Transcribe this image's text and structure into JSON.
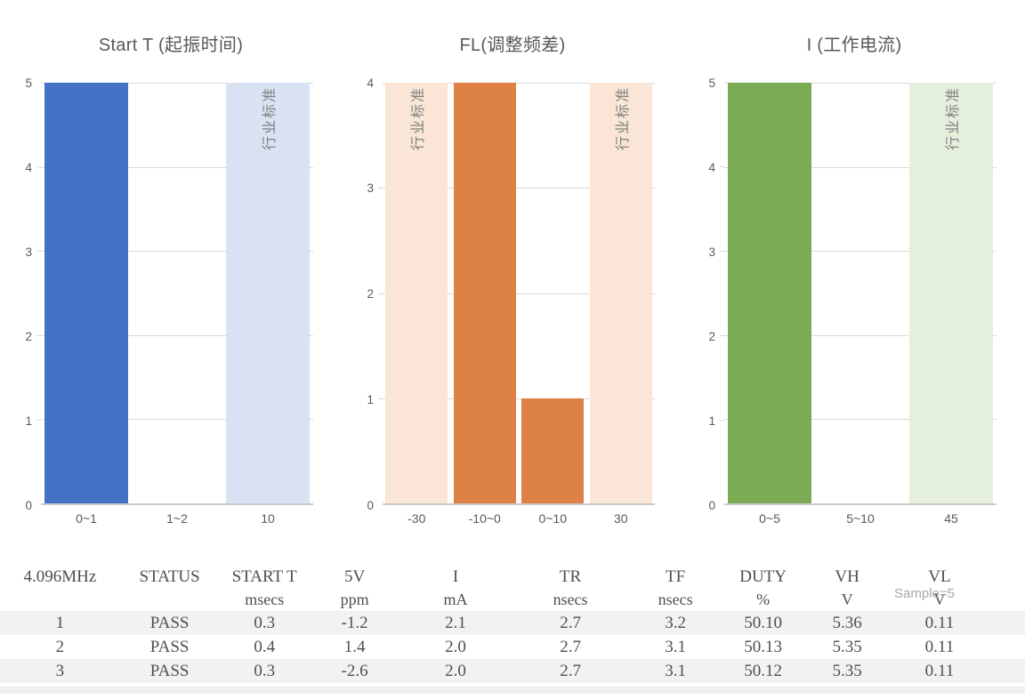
{
  "sample_note": "Sample=5",
  "chart_data": [
    {
      "type": "bar",
      "title": "Start T (起振时间)",
      "ylim": [
        0,
        5
      ],
      "ytick_step": 1,
      "grid": true,
      "legend": "none",
      "categories": [
        "0~1",
        "1~2",
        "10"
      ],
      "values": [
        5,
        0,
        5
      ],
      "series": [
        {
          "category": "0~1",
          "value": 5,
          "kind": "measured"
        },
        {
          "category": "1~2",
          "value": 0,
          "kind": "measured"
        },
        {
          "category": "10",
          "value": 5,
          "kind": "standard",
          "bar_label": "行业标准"
        }
      ],
      "colors": {
        "measured": "#4472C4",
        "standard": "#D9E2F3"
      }
    },
    {
      "type": "bar",
      "title": "FL(调整频差)",
      "ylim": [
        0,
        4
      ],
      "ytick_step": 1,
      "grid": true,
      "legend": "none",
      "categories": [
        "-30",
        "-10~0",
        "0~10",
        "30"
      ],
      "values": [
        4,
        4,
        1,
        4
      ],
      "series": [
        {
          "category": "-30",
          "value": 4,
          "kind": "standard",
          "bar_label": "行业标准"
        },
        {
          "category": "-10~0",
          "value": 4,
          "kind": "measured"
        },
        {
          "category": "0~10",
          "value": 1,
          "kind": "measured"
        },
        {
          "category": "30",
          "value": 4,
          "kind": "standard",
          "bar_label": "行业标准"
        }
      ],
      "colors": {
        "measured": "#DD8146",
        "standard": "#FAE5D6"
      }
    },
    {
      "type": "bar",
      "title": "I (工作电流)",
      "ylim": [
        0,
        5
      ],
      "ytick_step": 1,
      "grid": true,
      "legend": "none",
      "categories": [
        "0~5",
        "5~10",
        "45"
      ],
      "values": [
        5,
        0,
        5
      ],
      "series": [
        {
          "category": "0~5",
          "value": 5,
          "kind": "measured"
        },
        {
          "category": "5~10",
          "value": 0,
          "kind": "measured"
        },
        {
          "category": "45",
          "value": 5,
          "kind": "standard",
          "bar_label": "行业标准"
        }
      ],
      "colors": {
        "measured": "#7BAB55",
        "standard": "#E4EFDC"
      }
    }
  ],
  "table": {
    "headers": [
      {
        "line1": "4.096MHz",
        "line2": ""
      },
      {
        "line1": "STATUS",
        "line2": ""
      },
      {
        "line1": "START T",
        "line2": "msecs"
      },
      {
        "line1": "5V",
        "line2": "ppm"
      },
      {
        "line1": "I",
        "line2": "mA"
      },
      {
        "line1": "TR",
        "line2": "nsecs"
      },
      {
        "line1": "TF",
        "line2": "nsecs"
      },
      {
        "line1": "DUTY",
        "line2": "%"
      },
      {
        "line1": "VH",
        "line2": "V"
      },
      {
        "line1": "VL",
        "line2": "V"
      }
    ],
    "rows": [
      [
        "1",
        "PASS",
        "0.3",
        "-1.2",
        "2.1",
        "2.7",
        "3.2",
        "50.10",
        "5.36",
        "0.11"
      ],
      [
        "2",
        "PASS",
        "0.4",
        "1.4",
        "2.0",
        "2.7",
        "3.1",
        "50.13",
        "5.35",
        "0.11"
      ],
      [
        "3",
        "PASS",
        "0.3",
        "-2.6",
        "2.0",
        "2.7",
        "3.1",
        "50.12",
        "5.35",
        "0.11"
      ]
    ],
    "column_widths_pct": [
      11.7,
      9.7,
      8.8,
      8.8,
      10.9,
      11.5,
      9.0,
      8.1,
      8.3,
      13.2
    ]
  },
  "style_colors": {
    "grid": "#d9d9d9",
    "axis": "#c9c9c9",
    "chart_text": "#595959",
    "bar_label_text": "#808080",
    "table_stripe": "#f2f2f2",
    "sample_note_text": "#a9a9a9"
  }
}
